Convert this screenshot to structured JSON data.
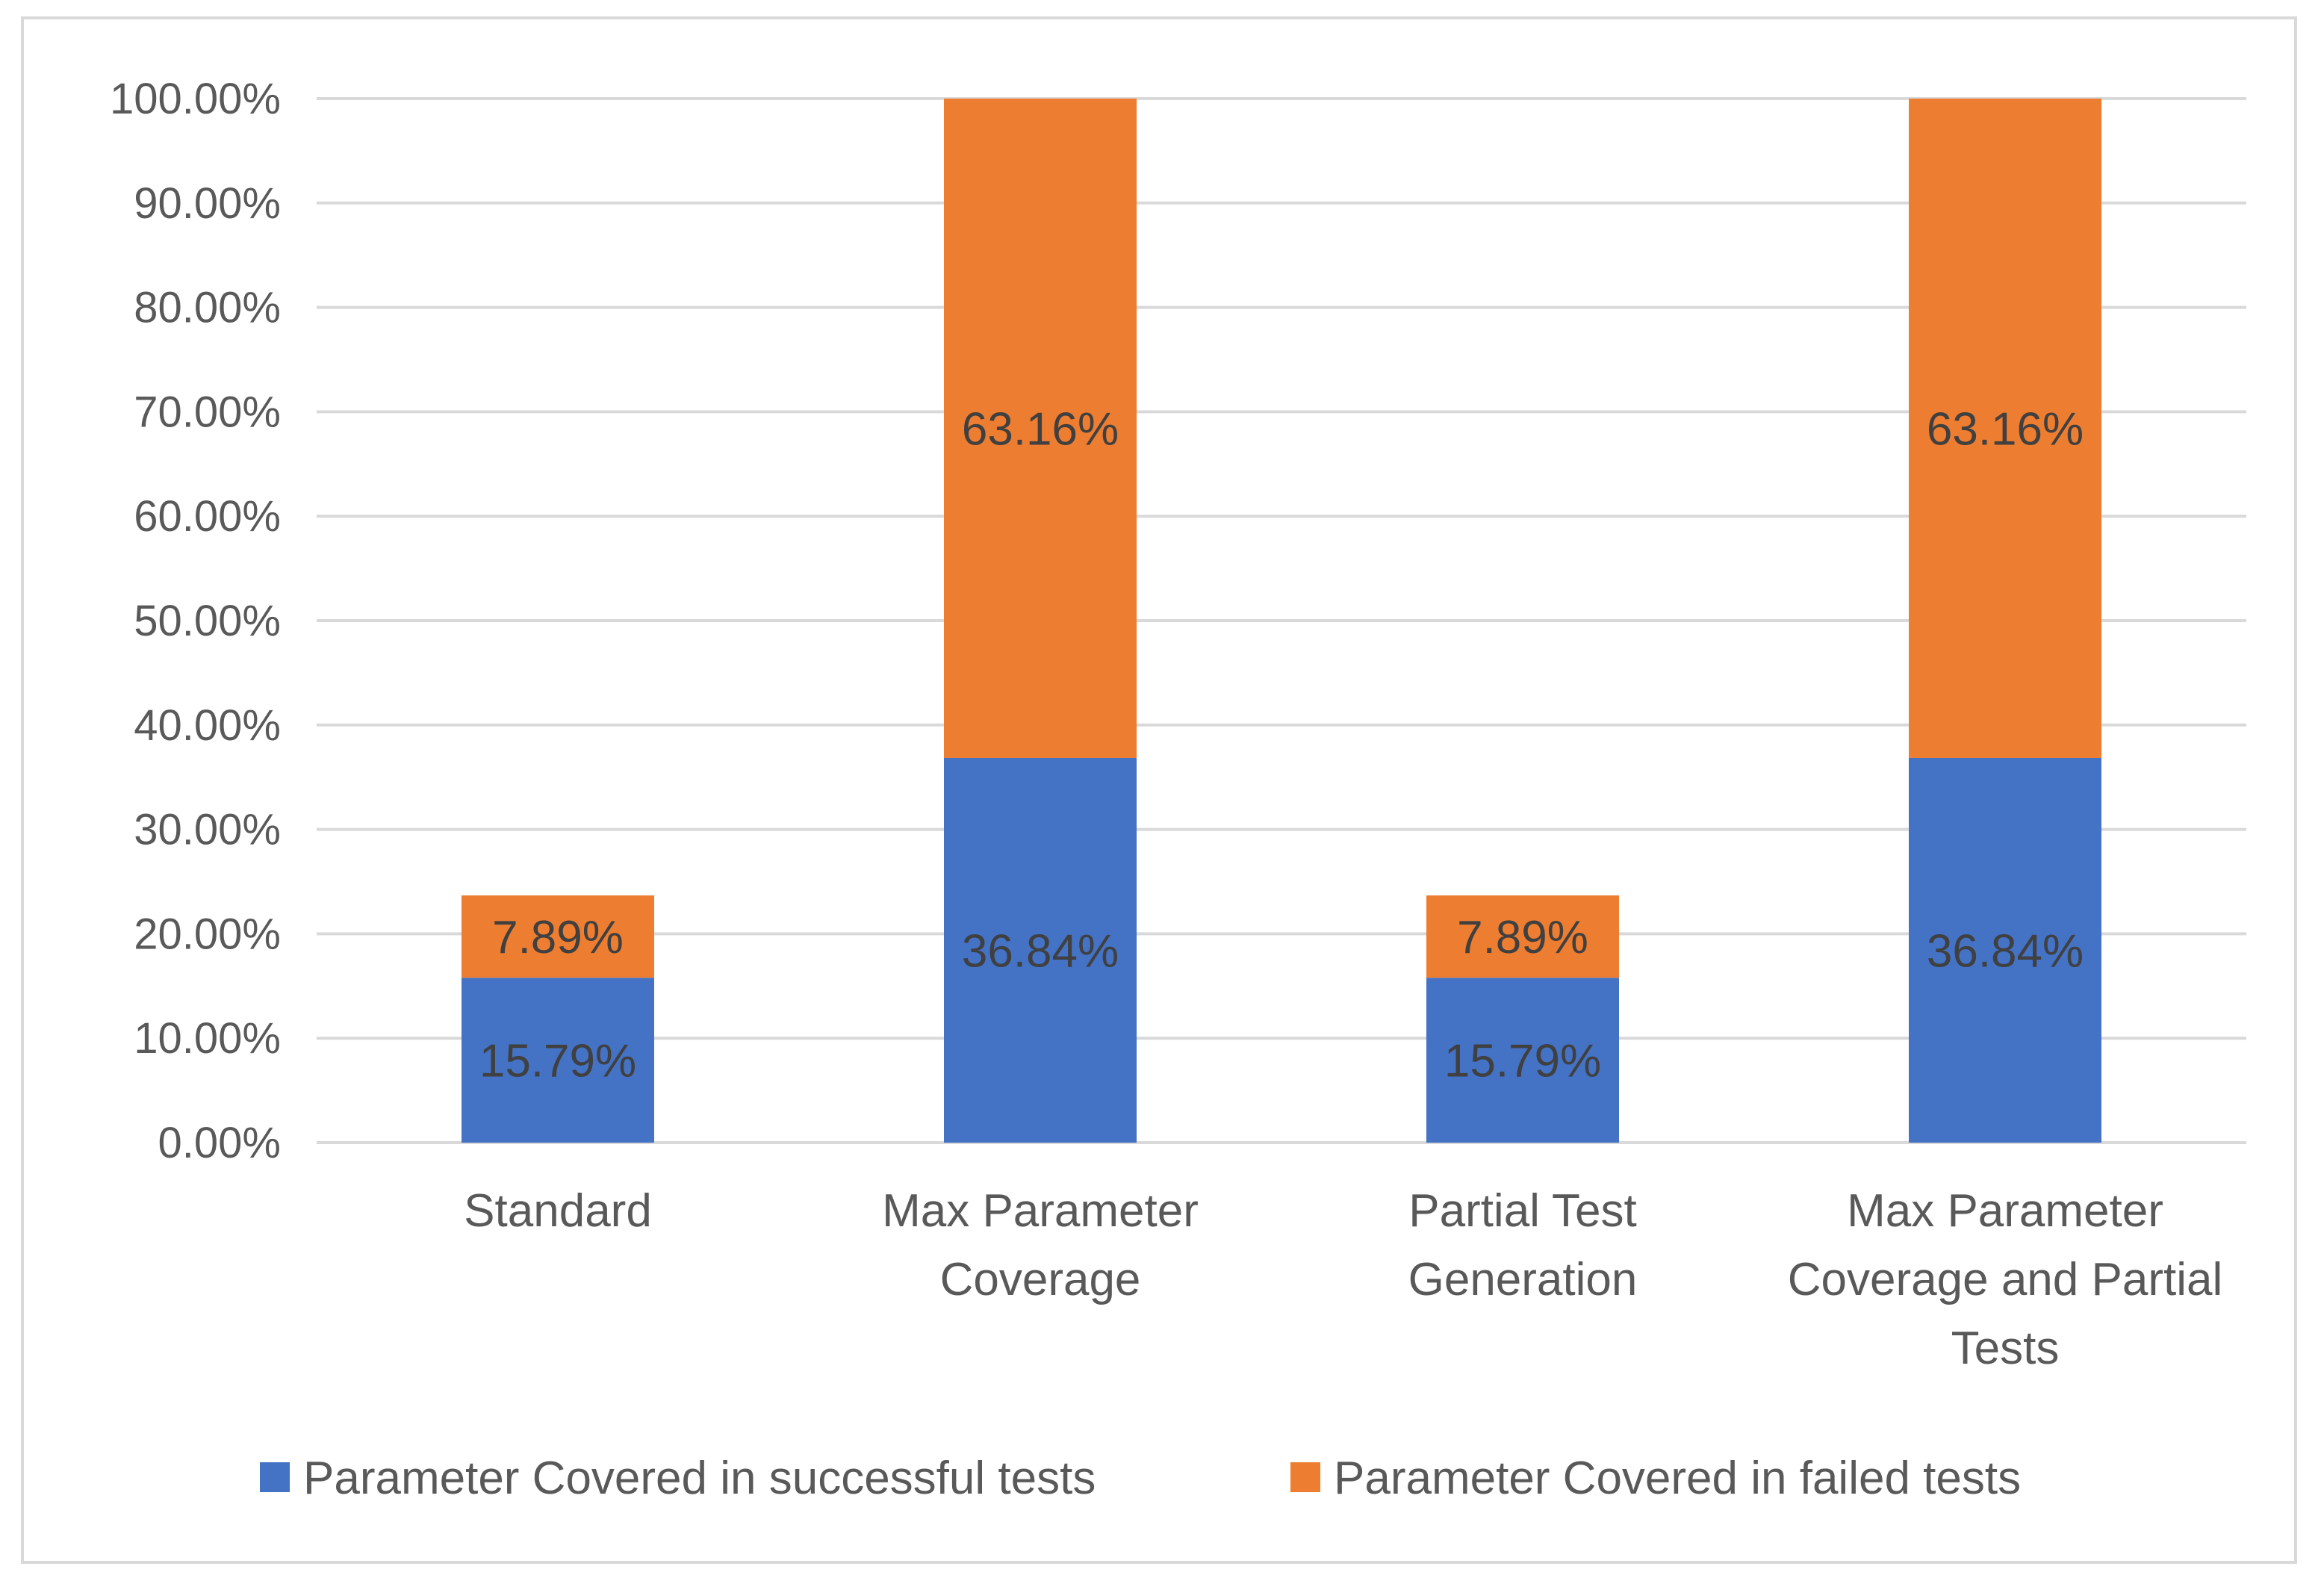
{
  "chart_data": {
    "type": "bar",
    "stacked": true,
    "title": "",
    "xlabel": "",
    "ylabel": "",
    "ylim": [
      0,
      100
    ],
    "ytick_step": 10,
    "ytick_format": "percent_2dp",
    "yticks": [
      "0.00%",
      "10.00%",
      "20.00%",
      "30.00%",
      "40.00%",
      "50.00%",
      "60.00%",
      "70.00%",
      "80.00%",
      "90.00%",
      "100.00%"
    ],
    "grid": true,
    "legend_position": "bottom",
    "categories": [
      [
        "Standard"
      ],
      [
        "Max Parameter",
        "Coverage"
      ],
      [
        "Partial Test",
        "Generation"
      ],
      [
        "Max Parameter",
        "Coverage and Partial",
        "Tests"
      ]
    ],
    "series": [
      {
        "name": "Parameter Covered in successful tests",
        "color": "#4472c4",
        "values": [
          15.79,
          36.84,
          15.79,
          36.84
        ],
        "labels": [
          "15.79%",
          "36.84%",
          "15.79%",
          "36.84%"
        ]
      },
      {
        "name": "Parameter Covered in failed tests",
        "color": "#ed7d31",
        "values": [
          7.89,
          63.16,
          7.89,
          63.16
        ],
        "labels": [
          "7.89%",
          "63.16%",
          "7.89%",
          "63.16%"
        ]
      }
    ],
    "gridline_color": "#d9d9d9",
    "axis_line_color": "#d9d9d9"
  }
}
